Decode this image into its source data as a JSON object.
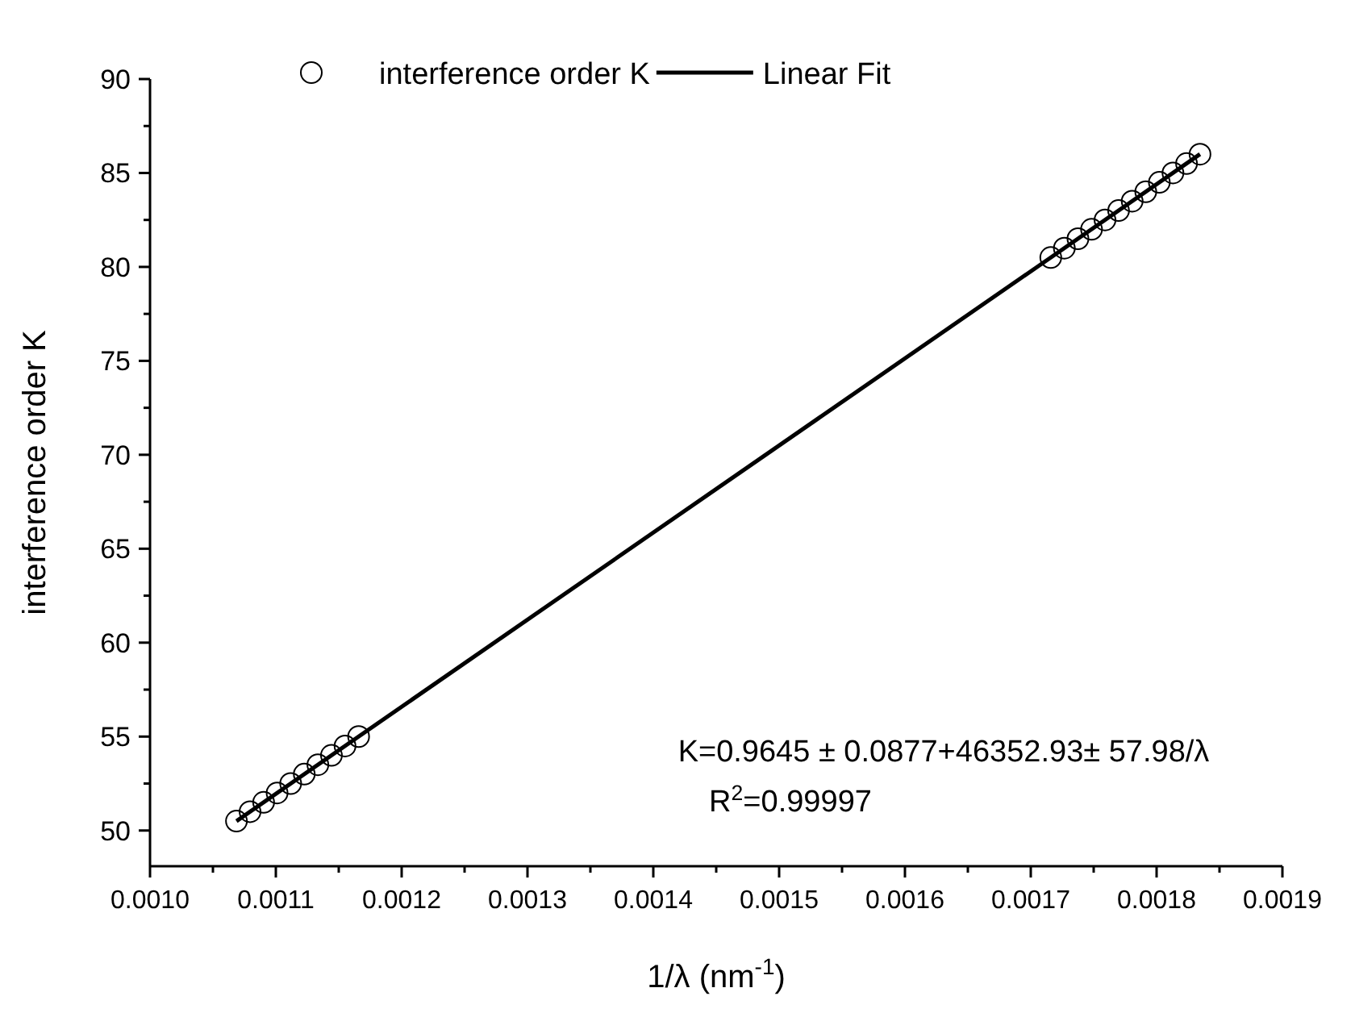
{
  "chart_data": {
    "type": "scatter",
    "xlabel": "1/λ (nm$^{-1}$)",
    "ylabel": "interference order K",
    "xlim": [
      0.001,
      0.0019
    ],
    "ylim": [
      48.1,
      90
    ],
    "xticks": [
      {
        "value": 0.001,
        "label": "0.0010"
      },
      {
        "value": 0.00105,
        "label": null
      },
      {
        "value": 0.0011,
        "label": "0.0011"
      },
      {
        "value": 0.00115,
        "label": null
      },
      {
        "value": 0.0012,
        "label": "0.0012"
      },
      {
        "value": 0.00125,
        "label": null
      },
      {
        "value": 0.0013,
        "label": "0.0013"
      },
      {
        "value": 0.00135,
        "label": null
      },
      {
        "value": 0.0014,
        "label": "0.0014"
      },
      {
        "value": 0.00145,
        "label": null
      },
      {
        "value": 0.0015,
        "label": "0.0015"
      },
      {
        "value": 0.00155,
        "label": null
      },
      {
        "value": 0.0016,
        "label": "0.0016"
      },
      {
        "value": 0.00165,
        "label": null
      },
      {
        "value": 0.0017,
        "label": "0.0017"
      },
      {
        "value": 0.00175,
        "label": null
      },
      {
        "value": 0.0018,
        "label": "0.0018"
      },
      {
        "value": 0.00185,
        "label": null
      },
      {
        "value": 0.0019,
        "label": "0.0019"
      }
    ],
    "yticks": [
      50,
      {
        "value": 52.5,
        "label": null
      },
      55,
      {
        "value": 57.5,
        "label": null
      },
      60,
      {
        "value": 62.5,
        "label": null
      },
      65,
      {
        "value": 67.5,
        "label": null
      },
      70,
      {
        "value": 72.5,
        "label": null
      },
      75,
      {
        "value": 77.5,
        "label": null
      },
      80,
      {
        "value": 82.5,
        "label": null
      },
      85,
      {
        "value": 87.5,
        "label": null
      },
      90
    ],
    "legend": "top",
    "grid": false,
    "series": [
      {
        "name": "interference order K",
        "marker": "circle",
        "color": "#000000",
        "x": [
          0.0010687,
          0.0010795,
          0.0010903,
          0.001101,
          0.0011118,
          0.0011226,
          0.0011334,
          0.0011442,
          0.001155,
          0.0011658,
          0.0017159,
          0.0017267,
          0.0017375,
          0.0017483,
          0.001759,
          0.0017698,
          0.0017806,
          0.0017914,
          0.0018022,
          0.001813,
          0.0018238,
          0.0018345
        ],
        "values": [
          50.5,
          51,
          51.5,
          52,
          52.5,
          53,
          53.5,
          54,
          54.5,
          55,
          80.5,
          81,
          81.5,
          82,
          82.5,
          83,
          83.5,
          84,
          84.5,
          85,
          85.5,
          86
        ]
      },
      {
        "name": "Linear Fit",
        "type": "line",
        "line_style": "solid",
        "color": "#000000",
        "x": [
          0.0010687,
          0.0018345
        ],
        "values": [
          50.5,
          86
        ]
      }
    ],
    "annotations": [
      "K=0.9645 ± 0.0877+46352.93± 57.98/λ",
      "R$^{2}$=0.99997"
    ]
  }
}
